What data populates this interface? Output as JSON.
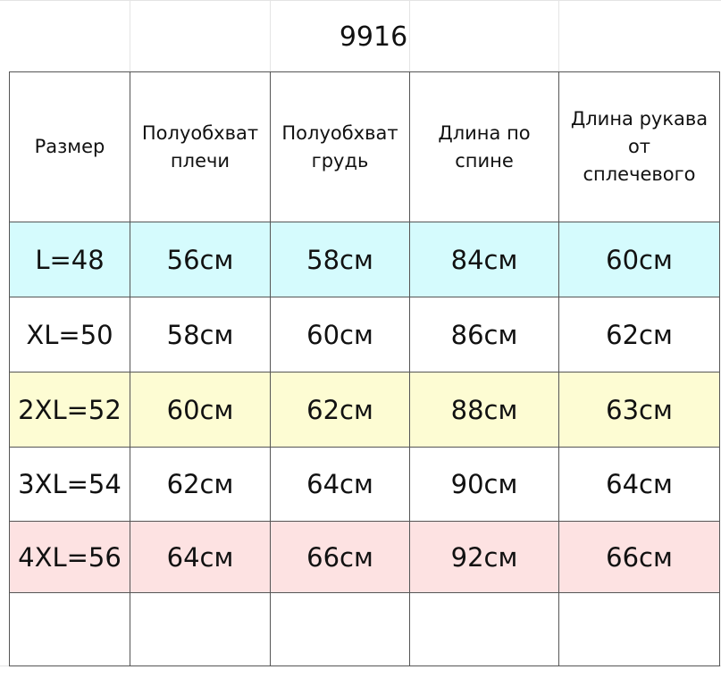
{
  "header": {
    "title": "9916"
  },
  "table": {
    "columns": [
      [
        "Размер"
      ],
      [
        "Полуобхват",
        "плечи"
      ],
      [
        "Полуобхват",
        "грудь"
      ],
      [
        "Длина  по",
        "спине"
      ],
      [
        "Длина рукава",
        "от",
        "сплечевого"
      ]
    ],
    "rows": [
      {
        "color": "#d5fbfd",
        "cells": [
          "L=48",
          "56см",
          "58см",
          "84см",
          "60см"
        ]
      },
      {
        "color": "#ffffff",
        "cells": [
          "XL=50",
          "58см",
          "60см",
          "86см",
          "62см"
        ]
      },
      {
        "color": "#fdfcd3",
        "cells": [
          "2XL=52",
          "60см",
          "62см",
          "88см",
          "63см"
        ]
      },
      {
        "color": "#ffffff",
        "cells": [
          "3XL=54",
          "62см",
          "64см",
          "90см",
          "64см"
        ]
      },
      {
        "color": "#fde2e2",
        "cells": [
          "4XL=56",
          "64см",
          "66см",
          "92см",
          "66см"
        ]
      }
    ]
  }
}
